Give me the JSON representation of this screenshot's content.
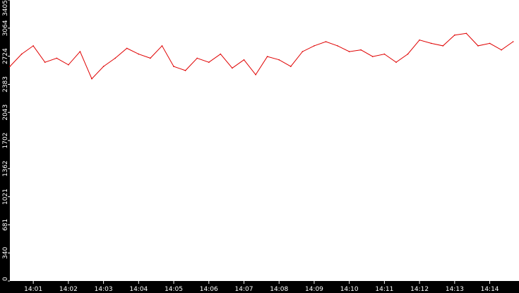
{
  "chart_data": {
    "type": "line",
    "title": "",
    "xlabel": "",
    "ylabel": "",
    "y_ticks": [
      0,
      340,
      681,
      1021,
      1362,
      1702,
      2043,
      2383,
      2724,
      3064,
      3405
    ],
    "x_ticks": [
      "14:01",
      "14:02",
      "14:03",
      "14:04",
      "14:05",
      "14:06",
      "14:07",
      "14:08",
      "14:09",
      "14:10",
      "14:11",
      "14:12",
      "14:13",
      "14:14"
    ],
    "ylim": [
      0,
      3405
    ],
    "xlim": [
      "14:00:20",
      "14:14:50"
    ],
    "grid": false,
    "legend": "none",
    "colors": {
      "series": "#e00000",
      "axis_band": "#000000",
      "axis_text": "#ffffff",
      "background": "#ffffff"
    },
    "series": [
      {
        "x": [
          "14:00:20",
          "14:00:40",
          "14:01:00",
          "14:01:20",
          "14:01:40",
          "14:02:00",
          "14:02:20",
          "14:02:40",
          "14:03:00",
          "14:03:20",
          "14:03:40",
          "14:04:00",
          "14:04:20",
          "14:04:40",
          "14:05:00",
          "14:05:20",
          "14:05:40",
          "14:06:00",
          "14:06:20",
          "14:06:40",
          "14:07:00",
          "14:07:20",
          "14:07:40",
          "14:08:00",
          "14:08:20",
          "14:08:40",
          "14:09:00",
          "14:09:20",
          "14:09:40",
          "14:10:00",
          "14:10:20",
          "14:10:40",
          "14:11:00",
          "14:11:20",
          "14:11:40",
          "14:12:00",
          "14:12:20",
          "14:12:40",
          "14:13:00",
          "14:13:20",
          "14:13:40",
          "14:14:00",
          "14:14:20",
          "14:14:40"
        ],
        "values": [
          2600,
          2750,
          2850,
          2650,
          2700,
          2620,
          2780,
          2450,
          2600,
          2700,
          2820,
          2750,
          2700,
          2850,
          2600,
          2550,
          2700,
          2650,
          2750,
          2580,
          2680,
          2500,
          2720,
          2680,
          2600,
          2780,
          2850,
          2900,
          2850,
          2780,
          2800,
          2720,
          2750,
          2650,
          2750,
          2920,
          2880,
          2850,
          2980,
          3000,
          2850,
          2880,
          2800,
          2900
        ]
      }
    ]
  }
}
